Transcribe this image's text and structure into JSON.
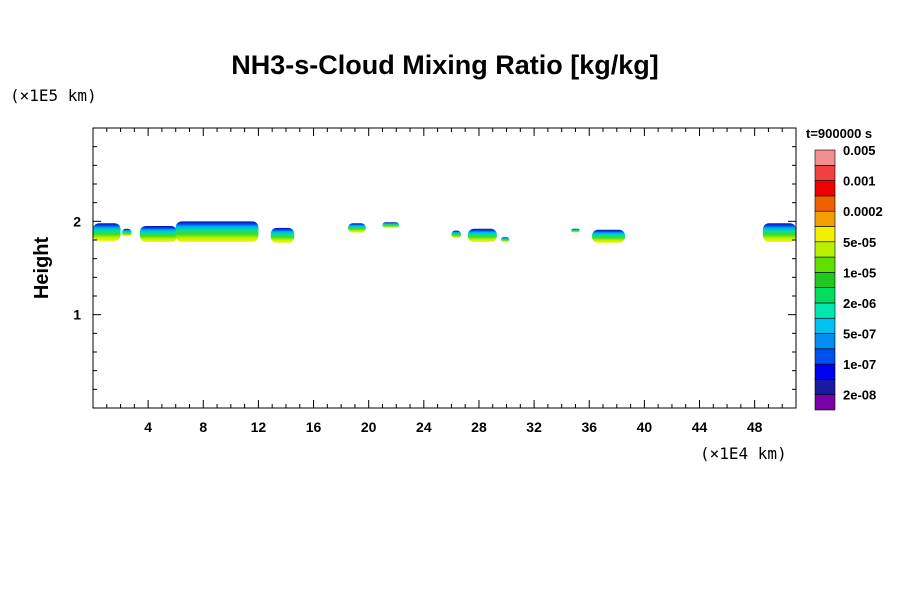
{
  "chart_data": {
    "type": "heatmap",
    "title": "NH3-s-Cloud Mixing Ratio [kg/kg]",
    "ylabel": "Height",
    "y_unit": "(×1E5 km)",
    "x_unit": "(×1E4 km)",
    "time_label": "t=900000 s",
    "xlim": [
      0,
      51
    ],
    "ylim": [
      0,
      3
    ],
    "x_ticks": [
      4,
      8,
      12,
      16,
      20,
      24,
      28,
      32,
      36,
      40,
      44,
      48
    ],
    "y_ticks": [
      1,
      2
    ],
    "colorbar": {
      "colors": [
        "#7a00a8",
        "#1a1aa0",
        "#0000f0",
        "#0050f0",
        "#008cf0",
        "#00c0f0",
        "#00e8b0",
        "#00dc60",
        "#20c820",
        "#60e000",
        "#b8f000",
        "#f0f000",
        "#f0a000",
        "#f06000",
        "#f00000",
        "#f04040",
        "#f09090"
      ],
      "labels": [
        "2e-08",
        "1e-07",
        "5e-07",
        "2e-06",
        "1e-05",
        "5e-05",
        "0.0002",
        "0.001",
        "0.005"
      ]
    },
    "cloud_patches": [
      {
        "x0": 0.0,
        "x1": 2.0,
        "ybot": 1.79,
        "ytop": 1.98
      },
      {
        "x0": 2.1,
        "x1": 2.8,
        "ybot": 1.84,
        "ytop": 1.92
      },
      {
        "x0": 3.4,
        "x1": 6.1,
        "ybot": 1.78,
        "ytop": 1.95
      },
      {
        "x0": 6.0,
        "x1": 12.0,
        "ybot": 1.78,
        "ytop": 2.0
      },
      {
        "x0": 12.9,
        "x1": 14.6,
        "ybot": 1.77,
        "ytop": 1.93
      },
      {
        "x0": 18.5,
        "x1": 19.8,
        "ybot": 1.88,
        "ytop": 1.98
      },
      {
        "x0": 21.0,
        "x1": 22.2,
        "ybot": 1.93,
        "ytop": 1.99
      },
      {
        "x0": 26.0,
        "x1": 26.7,
        "ybot": 1.82,
        "ytop": 1.9
      },
      {
        "x0": 27.2,
        "x1": 29.3,
        "ybot": 1.78,
        "ytop": 1.92
      },
      {
        "x0": 29.6,
        "x1": 30.2,
        "ybot": 1.78,
        "ytop": 1.83
      },
      {
        "x0": 34.7,
        "x1": 35.3,
        "ybot": 1.88,
        "ytop": 1.92
      },
      {
        "x0": 36.2,
        "x1": 38.6,
        "ybot": 1.77,
        "ytop": 1.91
      },
      {
        "x0": 48.6,
        "x1": 51.0,
        "ybot": 1.78,
        "ytop": 1.98
      }
    ]
  }
}
